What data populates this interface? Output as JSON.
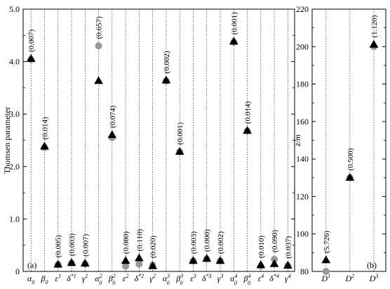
{
  "panel_labels": {
    "a": "(a)",
    "b": "(b)"
  },
  "marker_colors": {
    "triangle": "#000000",
    "circle": "#999999"
  },
  "chart_data": [
    {
      "panel": "a",
      "type": "scatter",
      "ylabel": "Thomsen parameter",
      "ylim": [
        0,
        5.0
      ],
      "yticks": [
        "0",
        "1.0",
        "2.0",
        "3.0",
        "4.0",
        "5.0"
      ],
      "grid": "vertical dotted lines at each category",
      "categories": [
        {
          "base": "α",
          "sup": "",
          "sub": "0"
        },
        {
          "base": "β",
          "sup": "",
          "sub": "0"
        },
        {
          "base": "ε",
          "sup": "1",
          "sub": ""
        },
        {
          "base": "δ",
          "sup": "*1",
          "sub": ""
        },
        {
          "base": "γ",
          "sup": "1",
          "sub": ""
        },
        {
          "base": "α",
          "sup": "2",
          "sub": "0"
        },
        {
          "base": "β",
          "sup": "2",
          "sub": "0"
        },
        {
          "base": "ε",
          "sup": "2",
          "sub": ""
        },
        {
          "base": "δ",
          "sup": "*2",
          "sub": ""
        },
        {
          "base": "γ",
          "sup": "2",
          "sub": ""
        },
        {
          "base": "α",
          "sup": "3",
          "sub": "0"
        },
        {
          "base": "β",
          "sup": "3",
          "sub": "0"
        },
        {
          "base": "ε",
          "sup": "3",
          "sub": ""
        },
        {
          "base": "δ",
          "sup": "*3",
          "sub": ""
        },
        {
          "base": "γ",
          "sup": "3",
          "sub": ""
        },
        {
          "base": "α",
          "sup": "4",
          "sub": "0"
        },
        {
          "base": "β",
          "sup": "4",
          "sub": "0"
        },
        {
          "base": "ε",
          "sup": "4",
          "sub": ""
        },
        {
          "base": "δ",
          "sup": "*4",
          "sub": ""
        },
        {
          "base": "γ",
          "sup": "4",
          "sub": ""
        }
      ],
      "series": [
        {
          "marker": "triangle",
          "values": [
            4.05,
            2.38,
            0.13,
            0.16,
            0.15,
            3.63,
            2.6,
            0.2,
            0.25,
            0.1,
            3.64,
            2.28,
            0.2,
            0.24,
            0.2,
            4.38,
            2.68,
            0.12,
            0.14,
            0.11
          ]
        },
        {
          "marker": "circle",
          "values": [
            4.04,
            2.36,
            0.13,
            0.16,
            0.14,
            4.3,
            2.55,
            0.1,
            0.14,
            0.12,
            3.63,
            2.28,
            0.2,
            0.24,
            0.2,
            4.37,
            2.68,
            0.1,
            0.23,
            0.11
          ]
        }
      ],
      "annotations": [
        "(0.007)",
        "(0.014)",
        "(0.005)",
        "(0.003)",
        "(0.007)",
        "(0.657)",
        "(0.074)",
        "(0.080)",
        "(0.110)",
        "(0.020)",
        "(0.002)",
        "(0.001)",
        "(0.003)",
        "(0.000)",
        "(0.002)",
        "(0.001)",
        "(0.014)",
        "(0.010)",
        "(0.090)",
        "(0.037)"
      ]
    },
    {
      "panel": "b",
      "type": "scatter",
      "ylabel": "z/m",
      "ylim": [
        80,
        220
      ],
      "yticks": [
        "80",
        "100",
        "120",
        "140",
        "160",
        "180",
        "200",
        "220"
      ],
      "grid": "vertical dotted lines at each category",
      "categories": [
        {
          "base": "D",
          "sup": "1",
          "sub": ""
        },
        {
          "base": "D",
          "sup": "2",
          "sub": ""
        },
        {
          "base": "D",
          "sup": "3",
          "sub": ""
        }
      ],
      "series": [
        {
          "marker": "triangle",
          "values": [
            86,
            130,
            201
          ]
        },
        {
          "marker": "circle",
          "values": [
            80,
            130,
            200
          ]
        }
      ],
      "annotations": [
        "(5.726)",
        "(0.500)",
        "(1.120)"
      ]
    }
  ]
}
